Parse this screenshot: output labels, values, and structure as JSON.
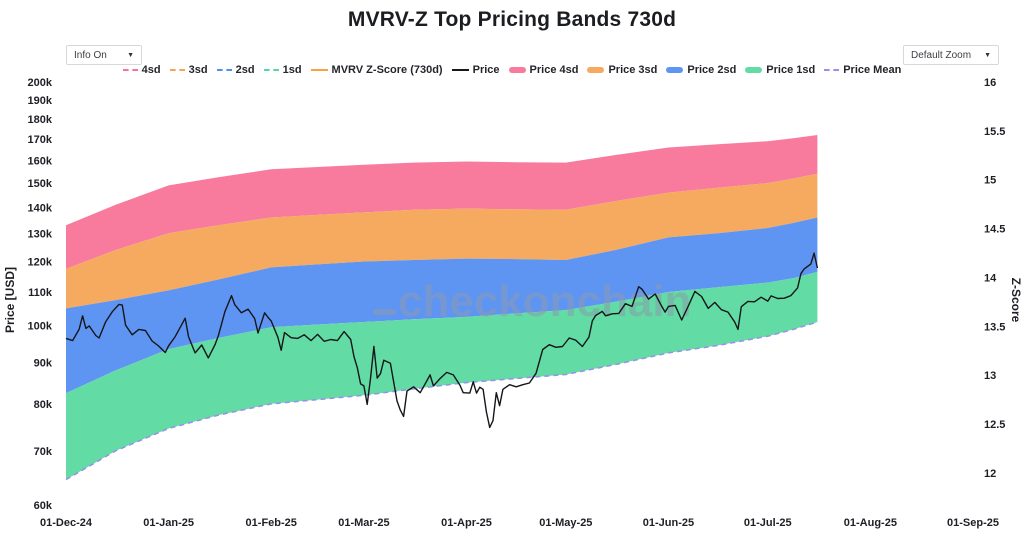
{
  "title": "MVRV-Z Top Pricing Bands 730d",
  "controls": {
    "info_dropdown": {
      "label": "Info On",
      "caret": "▼"
    },
    "zoom_dropdown": {
      "label": "Default Zoom",
      "caret": "▼"
    }
  },
  "watermark": {
    "text": "checkonchain"
  },
  "colors": {
    "band_4sd": "#f87b9e",
    "band_3sd": "#f6aa5f",
    "band_2sd": "#5f95f2",
    "band_1sd": "#62dba4",
    "mean_line": "#9b8cf0",
    "price_line": "#15161a",
    "watermark": "#8d99ad",
    "tick_text": "#1d1f24"
  },
  "legend": {
    "items": [
      {
        "label": "4sd",
        "swatch": "dash",
        "color": "#f8719d"
      },
      {
        "label": "3sd",
        "swatch": "dash",
        "color": "#f7a44e"
      },
      {
        "label": "2sd",
        "swatch": "dash",
        "color": "#4d8df6"
      },
      {
        "label": "1sd",
        "swatch": "dash",
        "color": "#4fdca0"
      },
      {
        "label": "MVRV Z-Score (730d)",
        "swatch": "line",
        "color": "#f7a43c"
      },
      {
        "label": "Price",
        "swatch": "line",
        "color": "#17181c"
      },
      {
        "label": "Price 4sd",
        "swatch": "band",
        "color": "#f87b9e"
      },
      {
        "label": "Price 3sd",
        "swatch": "band",
        "color": "#f6aa5f"
      },
      {
        "label": "Price 2sd",
        "swatch": "band",
        "color": "#5f95f2"
      },
      {
        "label": "Price 1sd",
        "swatch": "band",
        "color": "#62dba4"
      },
      {
        "label": "Price Mean",
        "swatch": "dash",
        "color": "#9b8cf0"
      }
    ]
  },
  "chart_data": {
    "type": "area",
    "title": "MVRV-Z Top Pricing Bands 730d",
    "x_axis": {
      "start_date": "01-Dec-24",
      "ticks": [
        {
          "day": 0,
          "label": "01-Dec-24"
        },
        {
          "day": 31,
          "label": "01-Jan-25"
        },
        {
          "day": 62,
          "label": "01-Feb-25"
        },
        {
          "day": 90,
          "label": "01-Mar-25"
        },
        {
          "day": 121,
          "label": "01-Apr-25"
        },
        {
          "day": 151,
          "label": "01-May-25"
        },
        {
          "day": 182,
          "label": "01-Jun-25"
        },
        {
          "day": 212,
          "label": "01-Jul-25"
        },
        {
          "day": 243,
          "label": "01-Aug-25"
        },
        {
          "day": 274,
          "label": "01-Sep-25"
        }
      ]
    },
    "y_axis_price": {
      "label": "Price [USD]",
      "scale": "log",
      "unit": "thousand USD",
      "range_k": [
        60,
        200
      ],
      "ticks": [
        {
          "v": 60,
          "label": "60k"
        },
        {
          "v": 70,
          "label": "70k"
        },
        {
          "v": 80,
          "label": "80k"
        },
        {
          "v": 90,
          "label": "90k"
        },
        {
          "v": 100,
          "label": "100k"
        },
        {
          "v": 110,
          "label": "110k"
        },
        {
          "v": 120,
          "label": "120k"
        },
        {
          "v": 130,
          "label": "130k"
        },
        {
          "v": 140,
          "label": "140k"
        },
        {
          "v": 150,
          "label": "150k"
        },
        {
          "v": 160,
          "label": "160k"
        },
        {
          "v": 170,
          "label": "170k"
        },
        {
          "v": 180,
          "label": "180k"
        },
        {
          "v": 190,
          "label": "190k"
        },
        {
          "v": 200,
          "label": "200k"
        }
      ]
    },
    "y_axis_zscore": {
      "label": "Z-Score",
      "range": [
        12,
        16
      ],
      "ticks": [
        {
          "v": 12,
          "label": "12"
        },
        {
          "v": 12.5,
          "label": "12.5"
        },
        {
          "v": 13,
          "label": "13"
        },
        {
          "v": 13.5,
          "label": "13.5"
        },
        {
          "v": 14,
          "label": "14"
        },
        {
          "v": 14.5,
          "label": "14.5"
        },
        {
          "v": 15,
          "label": "15"
        },
        {
          "v": 15.5,
          "label": "15.5"
        },
        {
          "v": 16,
          "label": "16"
        }
      ]
    },
    "bands": {
      "unit": "thousand USD",
      "days": [
        0,
        15,
        31,
        46,
        62,
        76,
        90,
        105,
        121,
        136,
        151,
        166,
        182,
        197,
        212,
        220,
        227
      ],
      "mean": [
        64.5,
        70,
        74.6,
        77.5,
        80,
        81,
        82,
        83.5,
        85,
        86,
        87,
        89.5,
        92.5,
        94.5,
        97,
        99,
        101
      ],
      "sd1": [
        82.5,
        88,
        93.5,
        96.5,
        99.5,
        100.3,
        101,
        101.8,
        102.5,
        103.5,
        104.5,
        107,
        110,
        111.5,
        113,
        114.5,
        116.5
      ],
      "sd2": [
        105,
        107.5,
        110.5,
        114,
        118,
        119,
        120,
        120.5,
        121,
        120.8,
        120.5,
        124,
        128.5,
        130,
        132,
        134,
        136
      ],
      "sd3": [
        117.5,
        124,
        130,
        133,
        136,
        137,
        138,
        139,
        139.5,
        139.2,
        139,
        142.5,
        146,
        148,
        150,
        152,
        154
      ],
      "sd4": [
        133,
        141,
        149,
        152.5,
        156,
        157,
        158,
        159,
        159.5,
        159.2,
        159,
        162.5,
        166,
        167.5,
        169,
        170.5,
        172
      ]
    },
    "price": {
      "unit": "thousand USD",
      "points": [
        [
          0,
          96.4
        ],
        [
          2,
          95.8
        ],
        [
          4,
          99
        ],
        [
          5,
          102.8
        ],
        [
          6,
          99.2
        ],
        [
          7,
          99.9
        ],
        [
          9,
          97.2
        ],
        [
          10,
          96.5
        ],
        [
          12,
          101.1
        ],
        [
          14,
          104
        ],
        [
          16,
          106.2
        ],
        [
          17,
          106
        ],
        [
          18,
          100.1
        ],
        [
          20,
          97.4
        ],
        [
          22,
          98.9
        ],
        [
          24,
          98.6
        ],
        [
          26,
          95.7
        ],
        [
          28,
          94.3
        ],
        [
          30,
          92.6
        ],
        [
          31,
          94.4
        ],
        [
          33,
          96.9
        ],
        [
          36,
          102.1
        ],
        [
          37,
          96.9
        ],
        [
          39,
          92.5
        ],
        [
          41,
          94.6
        ],
        [
          43,
          91.2
        ],
        [
          45,
          94.7
        ],
        [
          46,
          97.1
        ],
        [
          48,
          104
        ],
        [
          50,
          108.9
        ],
        [
          51,
          106.1
        ],
        [
          53,
          103.7
        ],
        [
          55,
          104.8
        ],
        [
          57,
          102
        ],
        [
          58,
          97.9
        ],
        [
          60,
          103.7
        ],
        [
          61,
          102.4
        ],
        [
          62,
          101.3
        ],
        [
          64,
          96.7
        ],
        [
          65,
          93.2
        ],
        [
          66,
          98
        ],
        [
          68,
          96.6
        ],
        [
          70,
          96.4
        ],
        [
          72,
          97.4
        ],
        [
          74,
          95.8
        ],
        [
          76,
          97.5
        ],
        [
          78,
          95.6
        ],
        [
          80,
          96.1
        ],
        [
          82,
          95.8
        ],
        [
          84,
          98.3
        ],
        [
          86,
          96.1
        ],
        [
          87,
          91.5
        ],
        [
          88,
          88.7
        ],
        [
          89,
          84.7
        ],
        [
          90,
          84.2
        ],
        [
          91,
          79.9
        ],
        [
          92,
          86
        ],
        [
          93,
          94.2
        ],
        [
          94,
          86.1
        ],
        [
          95,
          87.2
        ],
        [
          96,
          90.6
        ],
        [
          98,
          89.8
        ],
        [
          100,
          80.7
        ],
        [
          101,
          78.6
        ],
        [
          102,
          77.2
        ],
        [
          103,
          83
        ],
        [
          105,
          84
        ],
        [
          107,
          82.6
        ],
        [
          108,
          84
        ],
        [
          110,
          86.9
        ],
        [
          111,
          84.2
        ],
        [
          113,
          86
        ],
        [
          115,
          87.5
        ],
        [
          117,
          86.9
        ],
        [
          119,
          84.4
        ],
        [
          120,
          82.6
        ],
        [
          122,
          82.5
        ],
        [
          123,
          85.2
        ],
        [
          124,
          82.5
        ],
        [
          125,
          83.9
        ],
        [
          126,
          83.4
        ],
        [
          127,
          78.2
        ],
        [
          128,
          74.8
        ],
        [
          129,
          76.3
        ],
        [
          130,
          82.6
        ],
        [
          131,
          79.6
        ],
        [
          132,
          83.4
        ],
        [
          134,
          84.5
        ],
        [
          136,
          84
        ],
        [
          138,
          84.5
        ],
        [
          140,
          84.9
        ],
        [
          142,
          87.3
        ],
        [
          144,
          93.4
        ],
        [
          146,
          94.7
        ],
        [
          148,
          94
        ],
        [
          150,
          94.2
        ],
        [
          152,
          96.5
        ],
        [
          154,
          95.9
        ],
        [
          156,
          94.2
        ],
        [
          158,
          96.8
        ],
        [
          159,
          101.3
        ],
        [
          160,
          102.9
        ],
        [
          162,
          104.1
        ],
        [
          163,
          102.8
        ],
        [
          165,
          103.4
        ],
        [
          167,
          103.5
        ],
        [
          169,
          106.4
        ],
        [
          171,
          105.6
        ],
        [
          173,
          111.7
        ],
        [
          174,
          110.9
        ],
        [
          176,
          107.8
        ],
        [
          178,
          109.4
        ],
        [
          180,
          105.6
        ],
        [
          181,
          103.9
        ],
        [
          182,
          105.6
        ],
        [
          184,
          105.9
        ],
        [
          186,
          101.6
        ],
        [
          188,
          105.7
        ],
        [
          190,
          110.2
        ],
        [
          192,
          108.6
        ],
        [
          194,
          105
        ],
        [
          196,
          106.8
        ],
        [
          198,
          104.6
        ],
        [
          200,
          103.9
        ],
        [
          202,
          101
        ],
        [
          203,
          98.9
        ],
        [
          204,
          105.5
        ],
        [
          206,
          107.1
        ],
        [
          208,
          107
        ],
        [
          210,
          108.4
        ],
        [
          212,
          107.2
        ],
        [
          213,
          108.8
        ],
        [
          215,
          108
        ],
        [
          217,
          108.1
        ],
        [
          219,
          108.9
        ],
        [
          221,
          111.3
        ],
        [
          222,
          115.9
        ],
        [
          223,
          117.5
        ],
        [
          225,
          119.1
        ],
        [
          226,
          122.9
        ],
        [
          227,
          117.8
        ]
      ]
    }
  }
}
